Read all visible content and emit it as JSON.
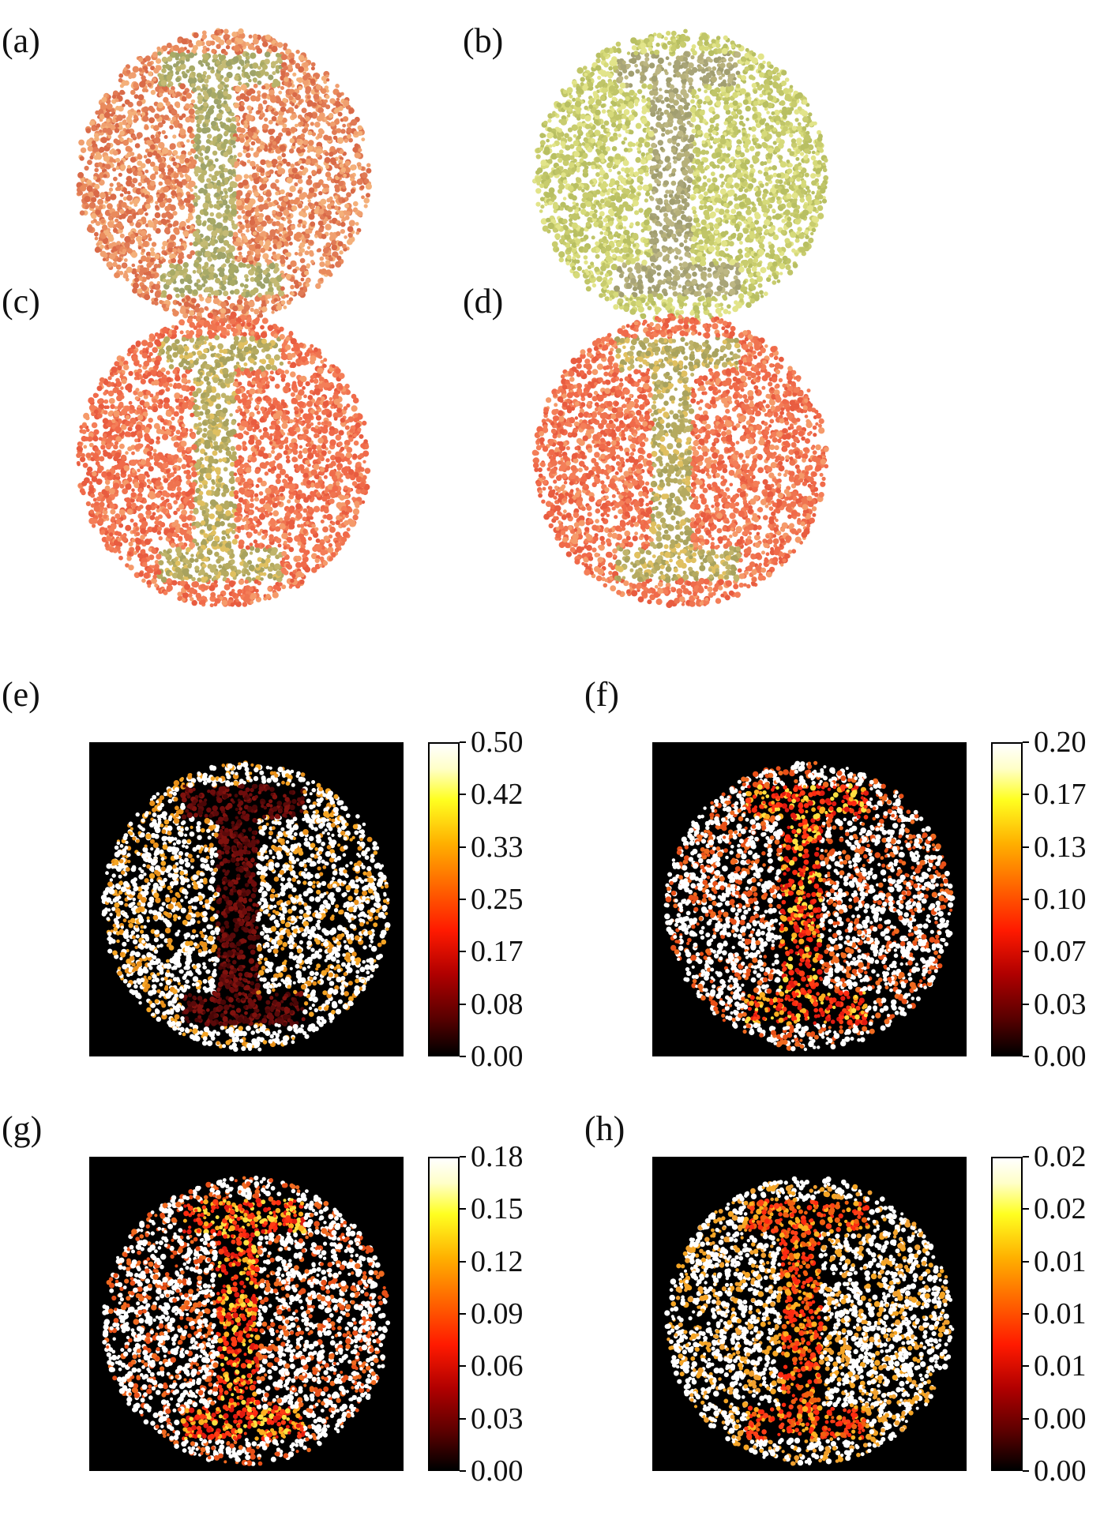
{
  "panels": [
    {
      "id": "a",
      "label": "(a)",
      "type": "plate",
      "bg": [
        "#e07a55",
        "#e98a5c",
        "#f0a070",
        "#d96a48",
        "#f4b07a"
      ],
      "fg": [
        "#b9b36a",
        "#a8aa66",
        "#c4ba74",
        "#9ea36a"
      ]
    },
    {
      "id": "b",
      "label": "(b)",
      "type": "plate",
      "bg": [
        "#c8cc6e",
        "#d6da7a",
        "#b8bf62",
        "#e2e48a",
        "#c0c568"
      ],
      "fg": [
        "#b6b07a",
        "#a8a478",
        "#bdb784",
        "#a19e70"
      ]
    },
    {
      "id": "c",
      "label": "(c)",
      "type": "plate",
      "bg": [
        "#f06a4a",
        "#f47e58",
        "#e85c40",
        "#f59a6a",
        "#ef7450"
      ],
      "fg": [
        "#b5aa60",
        "#c0b46a",
        "#e0c060",
        "#a8a25e"
      ]
    },
    {
      "id": "d",
      "label": "(d)",
      "type": "plate",
      "bg": [
        "#f06a4a",
        "#f47e58",
        "#e85c40",
        "#f59a6a",
        "#ef7450"
      ],
      "fg": [
        "#b5aa60",
        "#c0b46a",
        "#e0c060",
        "#a8a25e"
      ]
    },
    {
      "id": "e",
      "label": "(e)",
      "type": "map",
      "ticks": [
        "0.50",
        "0.42",
        "0.33",
        "0.25",
        "0.17",
        "0.08",
        "0.00"
      ],
      "bg": [
        "#ffffff",
        "#ffffff",
        "#ffffff",
        "#f5a524",
        "#ffffff",
        "#e8901a"
      ],
      "fg": [
        "#5a0a0a",
        "#6e0c0c",
        "#4a0606",
        "#80120e"
      ]
    },
    {
      "id": "f",
      "label": "(f)",
      "type": "map",
      "ticks": [
        "0.20",
        "0.17",
        "0.13",
        "0.10",
        "0.07",
        "0.03",
        "0.00"
      ],
      "bg": [
        "#ffffff",
        "#ffffff",
        "#ffffff",
        "#f06a20",
        "#ffffff",
        "#e85018"
      ],
      "fg": [
        "#ff2a10",
        "#ff3c14",
        "#ffe040",
        "#ffb020",
        "#e01a10"
      ]
    },
    {
      "id": "g",
      "label": "(g)",
      "type": "map",
      "ticks": [
        "0.18",
        "0.15",
        "0.12",
        "0.09",
        "0.06",
        "0.03",
        "0.00"
      ],
      "bg": [
        "#ffffff",
        "#ffffff",
        "#ffffff",
        "#f06a20",
        "#ffffff",
        "#e85018"
      ],
      "fg": [
        "#ff2a10",
        "#ff3c14",
        "#ffe040",
        "#ffb020",
        "#e01a10"
      ]
    },
    {
      "id": "h",
      "label": "(h)",
      "type": "map",
      "ticks": [
        "0.02",
        "0.02",
        "0.01",
        "0.01",
        "0.01",
        "0.00",
        "0.00"
      ],
      "bg": [
        "#ffffff",
        "#ffffff",
        "#ffffff",
        "#f5a524",
        "#ffffff",
        "#f0a030"
      ],
      "fg": [
        "#ff2a10",
        "#ff4018",
        "#ffb020",
        "#f06010"
      ]
    }
  ]
}
